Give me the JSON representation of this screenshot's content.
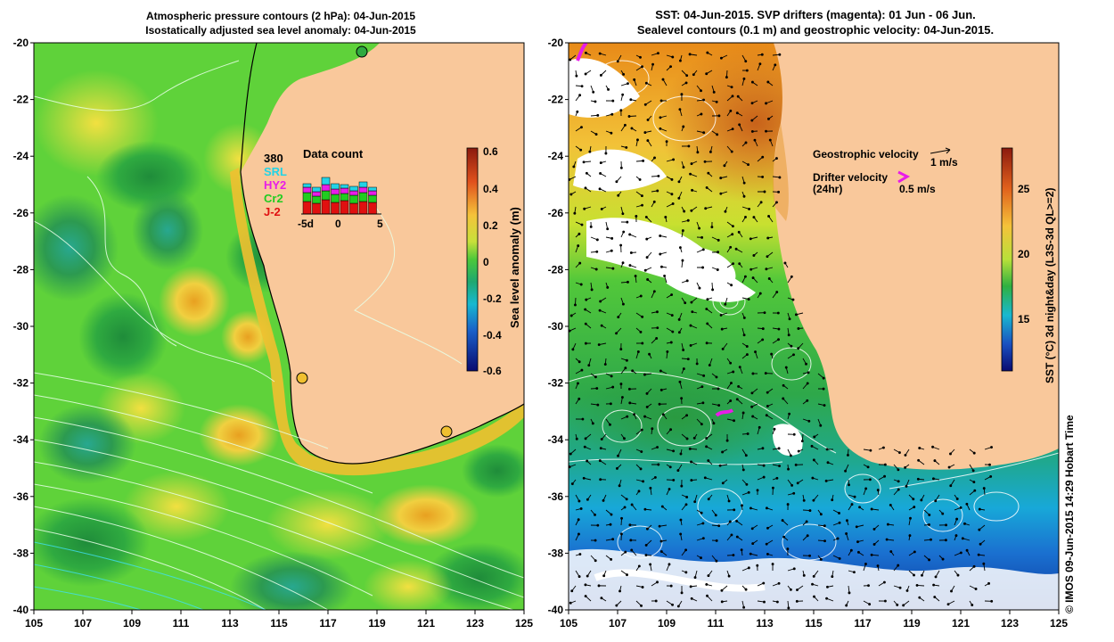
{
  "left_panel": {
    "title_line1": "Atmospheric pressure contours (2 hPa): 04-Jun-2015",
    "title_line2": "Isostatically adjusted sea level anomaly: 04-Jun-2015",
    "data_count": {
      "title": "Data count",
      "satellites": [
        {
          "name": "380",
          "color": "#000000"
        },
        {
          "name": "SRL",
          "color": "#22d3e6"
        },
        {
          "name": "HY2",
          "color": "#e81ce8"
        },
        {
          "name": "Cr2",
          "color": "#20cc20"
        },
        {
          "name": "J-2",
          "color": "#e01010"
        }
      ],
      "x_ticks": [
        "-5d",
        "0",
        "5"
      ]
    },
    "colorbar": {
      "label": "Sea level anomaly (m)",
      "ticks": [
        "0.6",
        "0.4",
        "0.2",
        "0",
        "-0.2",
        "-0.4",
        "-0.6"
      ]
    }
  },
  "right_panel": {
    "title_line1": "SST: 04-Jun-2015. SVP drifters (magenta): 01 Jun - 06 Jun.",
    "title_line2": "Sealevel contours (0.1 m) and geostrophic velocity: 04-Jun-2015.",
    "legend": {
      "geo_label": "Geostrophic velocity",
      "geo_scale": "1 m/s",
      "drifter_label": "Drifter velocity",
      "drifter_sub": "(24hr)",
      "drifter_scale": "0.5 m/s"
    },
    "colorbar": {
      "label": "SST (°C) 3d night&day (L3S-3d QL>=2)",
      "ticks": [
        "25",
        "20",
        "15"
      ]
    }
  },
  "axes": {
    "x_ticks": [
      "105",
      "107",
      "109",
      "111",
      "113",
      "115",
      "117",
      "119",
      "121",
      "123",
      "125"
    ],
    "y_ticks": [
      "-20",
      "-22",
      "-24",
      "-26",
      "-28",
      "-30",
      "-32",
      "-34",
      "-36",
      "-38",
      "-40"
    ]
  },
  "credit": "© IMOS 09-Jun-2015 14:29 Hobart Time",
  "colors": {
    "land": "#f9c89b",
    "sla_green": "#5fd23a",
    "sst_warm": "#d2691e",
    "sst_cool": "#1f7fd6"
  }
}
